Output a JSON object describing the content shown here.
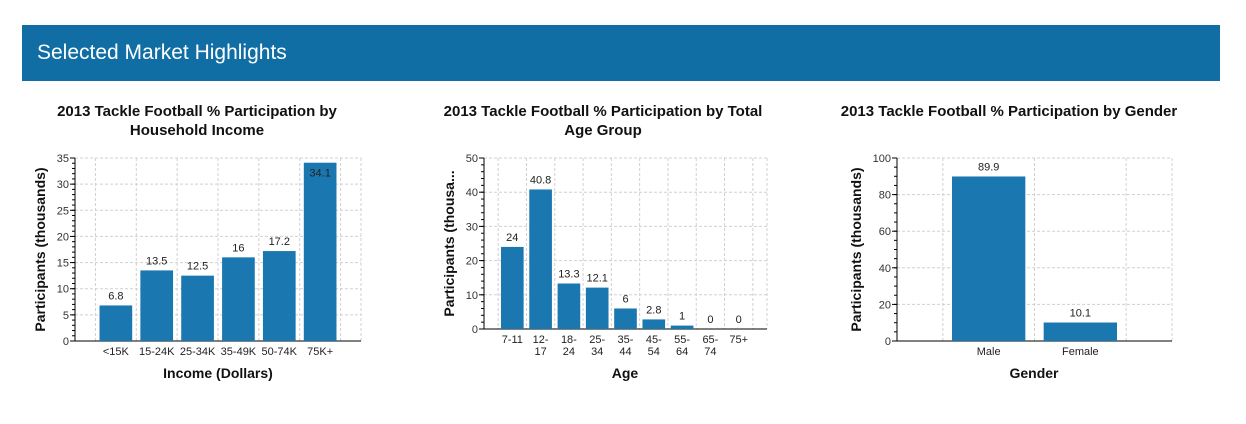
{
  "header": {
    "title": "Selected Market Highlights"
  },
  "colors": {
    "header": "#106ea4",
    "bar": "#1a77b0",
    "grid": "#d0d0d0"
  },
  "chart_data": [
    {
      "type": "bar",
      "title": "2013 Tackle Football % Participation by Household Income",
      "xlabel": "Income (Dollars)",
      "ylabel": "Participants (thousands)",
      "categories": [
        "<15K",
        "15-24K",
        "25-34K",
        "35-49K",
        "50-74K",
        "75K+"
      ],
      "values": [
        6.8,
        13.5,
        12.5,
        16,
        17.2,
        34.1
      ],
      "ylim": [
        0,
        35
      ],
      "ytick_step": 5,
      "minor_step": 1,
      "grid": true
    },
    {
      "type": "bar",
      "title": "2013 Tackle Football % Participation by Total Age Group",
      "xlabel": "Age",
      "ylabel": "Participants (thousa...",
      "categories": [
        [
          "7-11"
        ],
        [
          "12-",
          "17"
        ],
        [
          "18-",
          "24"
        ],
        [
          "25-",
          "34"
        ],
        [
          "35-",
          "44"
        ],
        [
          "45-",
          "54"
        ],
        [
          "55-",
          "64"
        ],
        [
          "65-",
          "74"
        ],
        [
          "75+"
        ]
      ],
      "values": [
        24,
        40.8,
        13.3,
        12.1,
        6,
        2.8,
        1,
        0,
        0
      ],
      "ylim": [
        0,
        50
      ],
      "ytick_step": 10,
      "minor_step": 2,
      "grid": true
    },
    {
      "type": "bar",
      "title": "2013 Tackle Football % Participation by Gender",
      "xlabel": "Gender",
      "ylabel": "Participants (thousands)",
      "categories": [
        "Male",
        "Female"
      ],
      "values": [
        89.9,
        10.1
      ],
      "ylim": [
        0,
        100
      ],
      "ytick_step": 20,
      "minor_step": 5,
      "grid": true
    }
  ]
}
